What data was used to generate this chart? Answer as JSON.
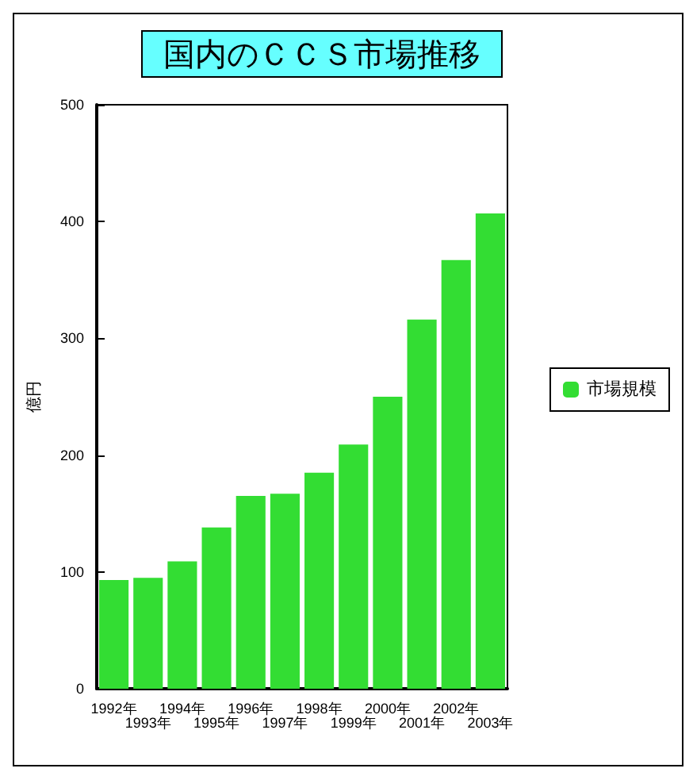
{
  "chart_data": {
    "type": "bar",
    "title": "国内のＣＣＳ市場推移",
    "ylabel": "億円",
    "categories": [
      "1992年",
      "1993年",
      "1994年",
      "1995年",
      "1996年",
      "1997年",
      "1998年",
      "1999年",
      "2000年",
      "2001年",
      "2002年",
      "2003年"
    ],
    "series": [
      {
        "name": "市場規模",
        "color": "#33dd33",
        "values": [
          93,
          95,
          109,
          138,
          165,
          167,
          185,
          209,
          250,
          316,
          367,
          407
        ]
      }
    ],
    "ylim": [
      0,
      500
    ],
    "yticks": [
      0,
      100,
      200,
      300,
      400,
      500
    ],
    "grid": false,
    "legend": "right"
  }
}
